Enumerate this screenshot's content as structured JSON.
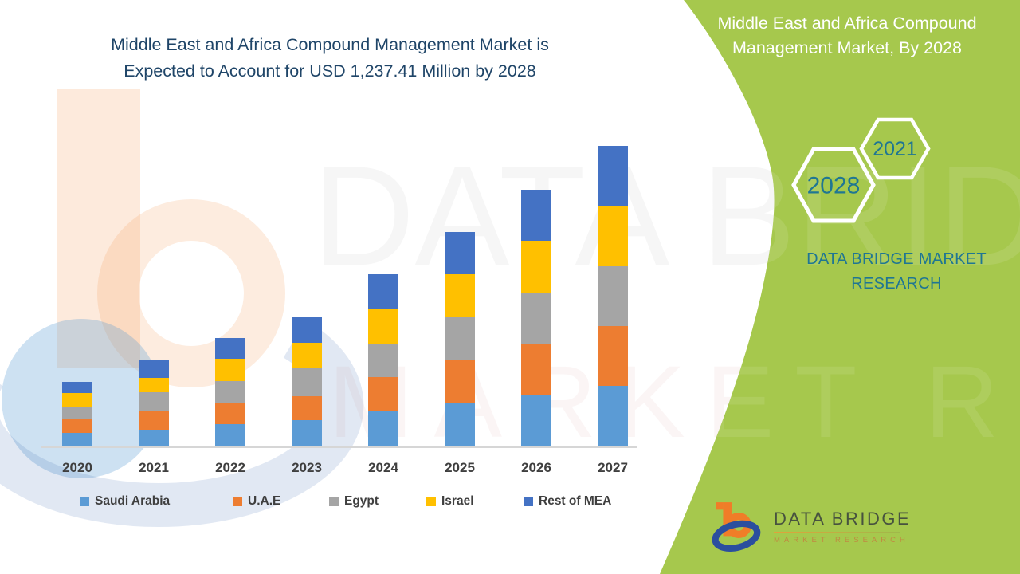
{
  "theme": {
    "navy": "#1F4568",
    "green": "#A6C84D",
    "teal": "#1F7693",
    "label_gray": "#3F3F3F",
    "axis_line": "#D6D6D6",
    "logo_orange": "#F07D28",
    "logo_blue": "#2B4F9E",
    "logo_text": "#47523F",
    "logo_sub": "#C08A41"
  },
  "left_section": {
    "title_line1": "Middle East and Africa Compound Management Market is",
    "title_line2": "Expected to Account for USD 1,237.41 Million by 2028"
  },
  "chart_data": {
    "type": "bar",
    "stacked": true,
    "title": "Middle East and Africa Compound Management Market is Expected to Account for USD 1,237.41 Million by 2028",
    "xlabel": "",
    "ylabel": "",
    "grid": false,
    "legend_position": "bottom",
    "value_units": "relative height units (no y-axis scale shown in image)",
    "categories": [
      "2020",
      "2021",
      "2022",
      "2023",
      "2024",
      "2025",
      "2026",
      "2027"
    ],
    "series": [
      {
        "name": "Saudi Arabia",
        "color": "#5B9BD5",
        "values": [
          17,
          21,
          28,
          33,
          44,
          54,
          65,
          76
        ]
      },
      {
        "name": "U.A.E",
        "color": "#ED7D31",
        "values": [
          17,
          24,
          27,
          30,
          43,
          54,
          64,
          75
        ]
      },
      {
        "name": "Egypt",
        "color": "#A5A5A5",
        "values": [
          16,
          23,
          27,
          35,
          42,
          54,
          64,
          75
        ]
      },
      {
        "name": "Israel",
        "color": "#FFC000",
        "values": [
          17,
          18,
          28,
          32,
          43,
          54,
          65,
          76
        ]
      },
      {
        "name": "Rest of MEA",
        "color": "#4472C4",
        "values": [
          14,
          22,
          26,
          32,
          44,
          53,
          64,
          75
        ]
      }
    ],
    "totals": [
      81,
      108,
      136,
      162,
      216,
      269,
      322,
      377
    ]
  },
  "green_panel": {
    "title_line1": "Middle East and Africa Compound",
    "title_line2": "Management Market, By 2028",
    "hexagon_small_year": "2021",
    "hexagon_large_year": "2028",
    "brand_caps_line1": "DATA BRIDGE MARKET",
    "brand_caps_line2": "RESEARCH"
  },
  "logo": {
    "name": "DATA BRIDGE",
    "subtitle": "MARKET RESEARCH"
  },
  "watermark": {
    "line1": "DATA BRIDGE",
    "line2": "MARKET RESEARCH"
  }
}
